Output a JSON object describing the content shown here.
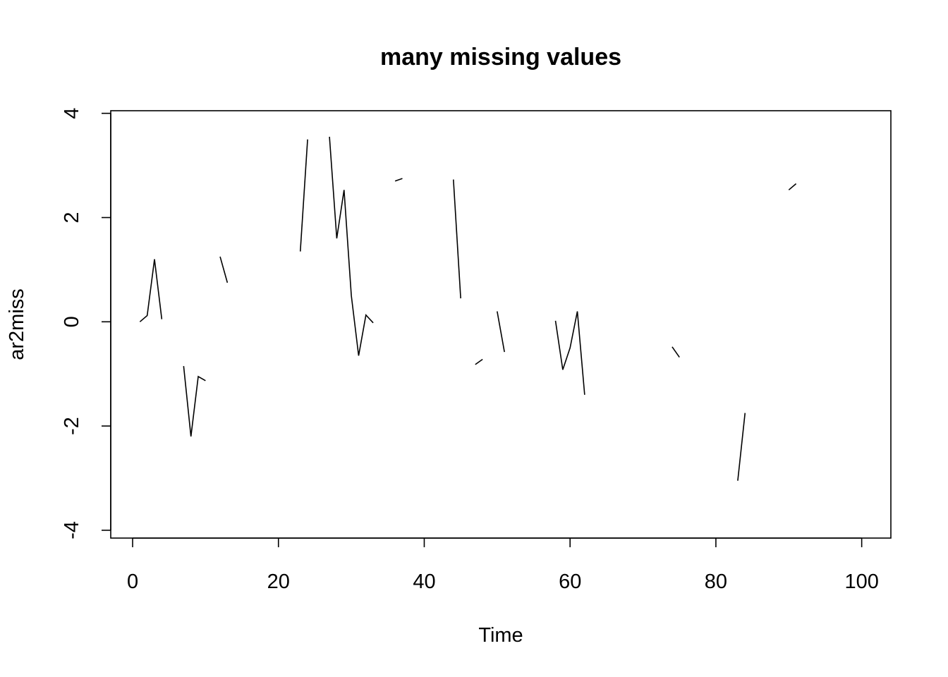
{
  "chart_data": {
    "type": "line",
    "title": "many missing values",
    "xlabel": "Time",
    "ylabel": "ar2miss",
    "xlim": [
      -3,
      104
    ],
    "ylim": [
      -4.15,
      4.05
    ],
    "x_ticks": [
      0,
      20,
      40,
      60,
      80,
      100
    ],
    "y_ticks": [
      -4,
      -2,
      0,
      2,
      4
    ],
    "grid": false,
    "legend": "none",
    "line_color": "#000000",
    "series": [
      {
        "x": [
          1,
          2,
          3,
          4,
          5,
          6,
          7,
          8,
          9,
          10,
          11,
          12,
          13,
          14,
          15,
          16,
          17,
          18,
          19,
          20,
          21,
          22,
          23,
          24,
          25,
          26,
          27,
          28,
          29,
          30,
          31,
          32,
          33,
          34,
          35,
          36,
          37,
          38,
          39,
          40,
          41,
          42,
          43,
          44,
          45,
          46,
          47,
          48,
          49,
          50,
          51,
          52,
          53,
          54,
          55,
          56,
          57,
          58,
          59,
          60,
          61,
          62,
          63,
          64,
          65,
          66,
          67,
          68,
          69,
          70,
          71,
          72,
          73,
          74,
          75,
          76,
          77,
          78,
          79,
          80,
          81,
          82,
          83,
          84,
          85,
          86,
          87,
          88,
          89,
          90,
          91,
          92,
          93,
          94,
          95,
          96,
          97,
          98,
          99,
          100
        ],
        "values": [
          0.0,
          0.12,
          1.2,
          0.05,
          null,
          null,
          -0.85,
          -2.2,
          -1.05,
          -1.13,
          null,
          1.25,
          0.75,
          null,
          null,
          null,
          null,
          null,
          null,
          null,
          null,
          null,
          1.35,
          3.5,
          null,
          null,
          3.55,
          1.6,
          2.53,
          0.5,
          -0.65,
          0.13,
          -0.02,
          null,
          null,
          2.7,
          2.75,
          null,
          null,
          null,
          null,
          null,
          null,
          2.73,
          0.45,
          null,
          -0.82,
          -0.72,
          null,
          0.2,
          -0.58,
          null,
          null,
          null,
          null,
          null,
          null,
          0.02,
          -0.92,
          -0.5,
          0.2,
          -1.4,
          null,
          null,
          null,
          null,
          null,
          null,
          null,
          null,
          null,
          null,
          null,
          -0.48,
          -0.68,
          null,
          null,
          null,
          null,
          null,
          null,
          null,
          -3.05,
          -1.75,
          null,
          null,
          null,
          null,
          null,
          2.53,
          2.65,
          null,
          null,
          null,
          null,
          null,
          null,
          null,
          null,
          null
        ]
      }
    ]
  }
}
